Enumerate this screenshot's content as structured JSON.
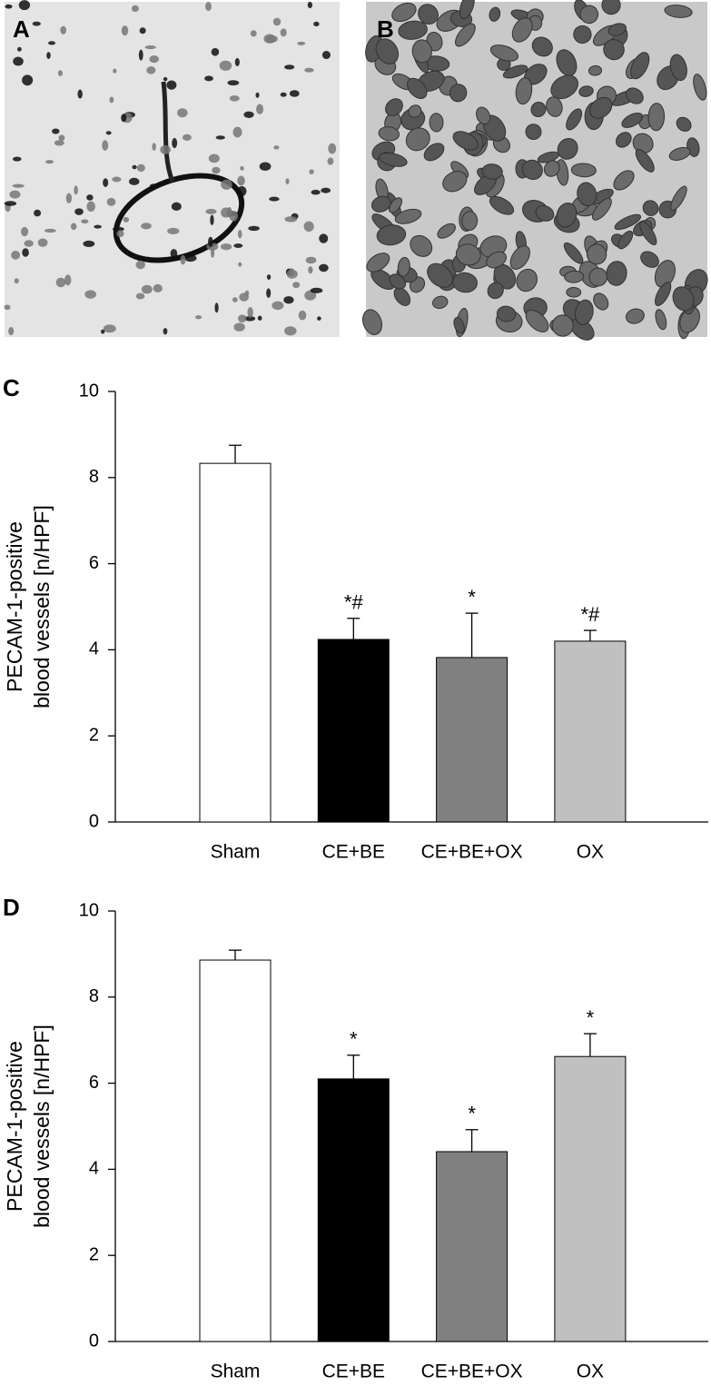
{
  "images": [
    {
      "label": "A"
    },
    {
      "label": "B"
    }
  ],
  "chart_data": [
    {
      "type": "bar",
      "panel_label": "C",
      "y_label": [
        "PECAM-1-positive",
        "blood vessels [n/HPF]"
      ],
      "categories": [
        "Sham",
        "CE+BE",
        "CE+BE+OX",
        "OX"
      ],
      "values": [
        8.33,
        4.24,
        3.82,
        4.2
      ],
      "errors": [
        0.42,
        0.49,
        1.03,
        0.25
      ],
      "annotations": [
        null,
        "*#",
        "*",
        "*#"
      ],
      "colors": [
        "#ffffff",
        "#000000",
        "#808080",
        "#c0c0c0"
      ],
      "ylim": [
        0,
        10
      ],
      "yticks": [
        0,
        2,
        4,
        6,
        8,
        10
      ]
    },
    {
      "type": "bar",
      "panel_label": "D",
      "y_label": [
        "PECAM-1-positive",
        "blood vessels [n/HPF]"
      ],
      "categories": [
        "Sham",
        "CE+BE",
        "CE+BE+OX",
        "OX"
      ],
      "values": [
        8.86,
        6.1,
        4.41,
        6.62
      ],
      "errors": [
        0.23,
        0.55,
        0.51,
        0.53
      ],
      "annotations": [
        null,
        "*",
        "*",
        "*"
      ],
      "colors": [
        "#ffffff",
        "#000000",
        "#808080",
        "#c0c0c0"
      ],
      "ylim": [
        0,
        10
      ],
      "yticks": [
        0,
        2,
        4,
        6,
        8,
        10
      ]
    }
  ]
}
